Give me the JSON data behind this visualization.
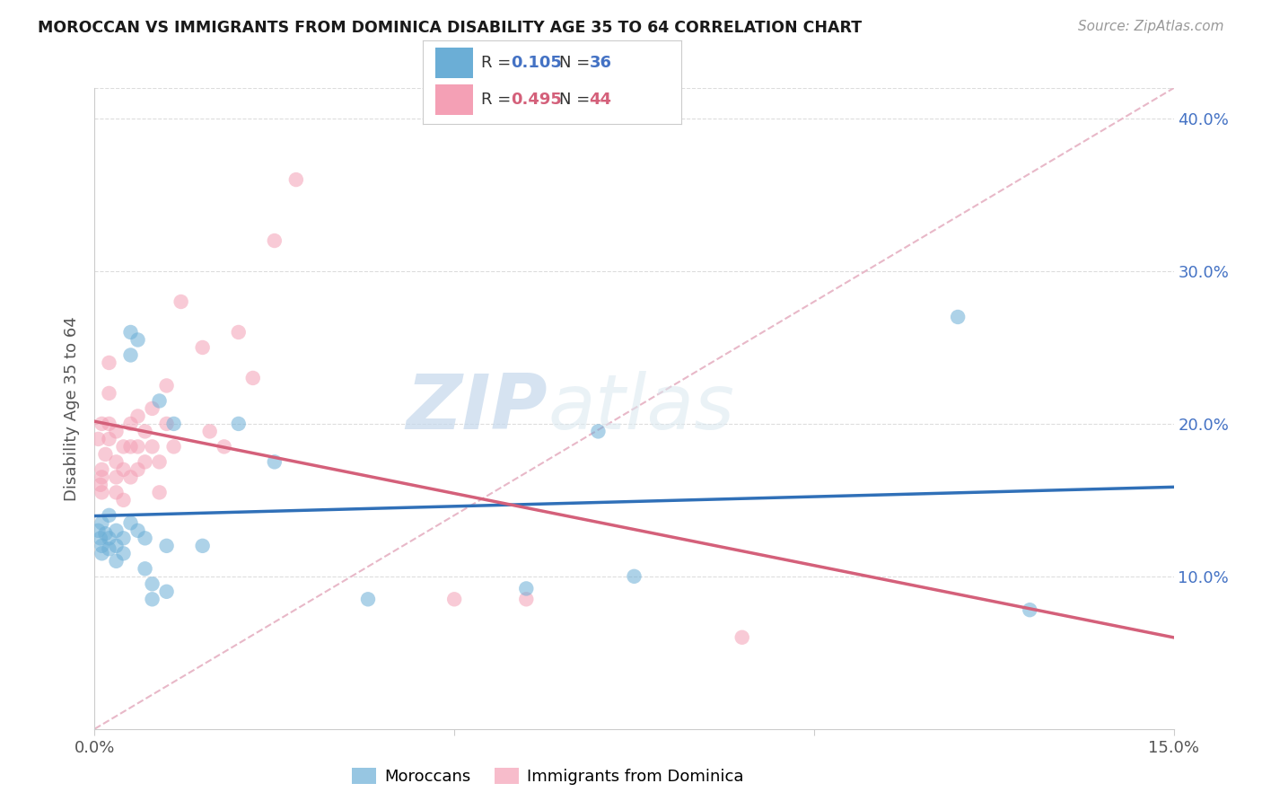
{
  "title": "MOROCCAN VS IMMIGRANTS FROM DOMINICA DISABILITY AGE 35 TO 64 CORRELATION CHART",
  "source": "Source: ZipAtlas.com",
  "ylabel": "Disability Age 35 to 64",
  "x_min": 0.0,
  "x_max": 0.15,
  "y_min": 0.0,
  "y_max": 0.42,
  "r1": 0.105,
  "n1": 36,
  "r2": 0.495,
  "n2": 44,
  "legend_label1": "Moroccans",
  "legend_label2": "Immigrants from Dominica",
  "blue_scatter": "#6baed6",
  "pink_scatter": "#f4a0b5",
  "blue_line": "#3070b8",
  "pink_line": "#d4607a",
  "ref_line_color": "#e8b8c8",
  "grid_color": "#dddddd",
  "watermark_zip": "ZIP",
  "watermark_atlas": "atlas",
  "moroccans_x": [
    0.0005,
    0.0008,
    0.001,
    0.001,
    0.001,
    0.0015,
    0.002,
    0.002,
    0.002,
    0.003,
    0.003,
    0.003,
    0.004,
    0.004,
    0.005,
    0.005,
    0.005,
    0.006,
    0.006,
    0.007,
    0.007,
    0.008,
    0.008,
    0.009,
    0.01,
    0.01,
    0.011,
    0.015,
    0.02,
    0.025,
    0.038,
    0.06,
    0.07,
    0.075,
    0.12,
    0.13
  ],
  "moroccans_y": [
    0.13,
    0.125,
    0.135,
    0.12,
    0.115,
    0.128,
    0.14,
    0.125,
    0.118,
    0.13,
    0.12,
    0.11,
    0.125,
    0.115,
    0.26,
    0.245,
    0.135,
    0.255,
    0.13,
    0.125,
    0.105,
    0.095,
    0.085,
    0.215,
    0.12,
    0.09,
    0.2,
    0.12,
    0.2,
    0.175,
    0.085,
    0.092,
    0.195,
    0.1,
    0.27,
    0.078
  ],
  "dominica_x": [
    0.0005,
    0.0008,
    0.001,
    0.001,
    0.001,
    0.001,
    0.0015,
    0.002,
    0.002,
    0.002,
    0.002,
    0.003,
    0.003,
    0.003,
    0.003,
    0.004,
    0.004,
    0.004,
    0.005,
    0.005,
    0.005,
    0.006,
    0.006,
    0.006,
    0.007,
    0.007,
    0.008,
    0.008,
    0.009,
    0.009,
    0.01,
    0.01,
    0.011,
    0.012,
    0.015,
    0.016,
    0.018,
    0.02,
    0.022,
    0.025,
    0.028,
    0.05,
    0.06,
    0.09
  ],
  "dominica_y": [
    0.19,
    0.16,
    0.2,
    0.17,
    0.165,
    0.155,
    0.18,
    0.24,
    0.22,
    0.2,
    0.19,
    0.195,
    0.175,
    0.165,
    0.155,
    0.185,
    0.17,
    0.15,
    0.2,
    0.185,
    0.165,
    0.205,
    0.185,
    0.17,
    0.195,
    0.175,
    0.21,
    0.185,
    0.175,
    0.155,
    0.225,
    0.2,
    0.185,
    0.28,
    0.25,
    0.195,
    0.185,
    0.26,
    0.23,
    0.32,
    0.36,
    0.085,
    0.085,
    0.06
  ]
}
